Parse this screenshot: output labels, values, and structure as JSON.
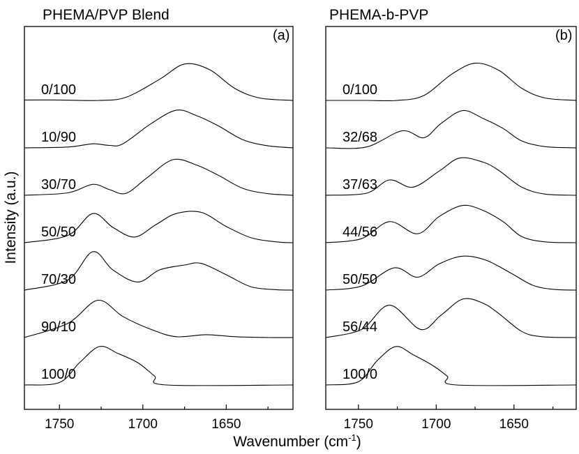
{
  "figure": {
    "xlabel": "Wavenumber (cm",
    "xlabel_sup": "-1",
    "xlabel_close": ")",
    "ylabel": "Intensity (a.u.)"
  },
  "chart_data": [
    {
      "type": "line",
      "title": "PHEMA/PVP Blend",
      "panel_label": "(a)",
      "xlabel": "Wavenumber (cm-1)",
      "ylabel": "Intensity (a.u.)",
      "xlim": [
        1771,
        1610
      ],
      "x_reversed": true,
      "xticks": [
        1750,
        1700,
        1650
      ],
      "yaxis_ticks": false,
      "traces_offset_stacked": true,
      "series": [
        {
          "name": "0/100",
          "points": [
            [
              1771,
              0.01
            ],
            [
              1750,
              0.01
            ],
            [
              1726,
              0.0
            ],
            [
              1710,
              0.08
            ],
            [
              1690,
              0.52
            ],
            [
              1675,
              0.9
            ],
            [
              1660,
              0.76
            ],
            [
              1645,
              0.3
            ],
            [
              1630,
              0.06
            ],
            [
              1610,
              0.0
            ]
          ]
        },
        {
          "name": "10/90",
          "points": [
            [
              1771,
              0.0
            ],
            [
              1745,
              0.02
            ],
            [
              1730,
              0.1
            ],
            [
              1720,
              0.06
            ],
            [
              1712,
              0.1
            ],
            [
              1695,
              0.6
            ],
            [
              1680,
              0.93
            ],
            [
              1668,
              0.8
            ],
            [
              1655,
              0.55
            ],
            [
              1640,
              0.2
            ],
            [
              1625,
              0.05
            ],
            [
              1610,
              0.0
            ]
          ]
        },
        {
          "name": "30/70",
          "points": [
            [
              1771,
              0.0
            ],
            [
              1745,
              0.06
            ],
            [
              1730,
              0.27
            ],
            [
              1720,
              0.14
            ],
            [
              1710,
              0.05
            ],
            [
              1697,
              0.45
            ],
            [
              1682,
              0.88
            ],
            [
              1668,
              0.75
            ],
            [
              1655,
              0.5
            ],
            [
              1640,
              0.17
            ],
            [
              1625,
              0.04
            ],
            [
              1610,
              0.0
            ]
          ]
        },
        {
          "name": "50/50",
          "points": [
            [
              1771,
              0.0
            ],
            [
              1745,
              0.18
            ],
            [
              1730,
              0.72
            ],
            [
              1718,
              0.38
            ],
            [
              1705,
              0.14
            ],
            [
              1692,
              0.45
            ],
            [
              1680,
              0.72
            ],
            [
              1665,
              0.75
            ],
            [
              1650,
              0.4
            ],
            [
              1635,
              0.12
            ],
            [
              1620,
              0.02
            ],
            [
              1610,
              0.0
            ]
          ]
        },
        {
          "name": "70/30",
          "points": [
            [
              1771,
              0.0
            ],
            [
              1745,
              0.25
            ],
            [
              1730,
              0.95
            ],
            [
              1718,
              0.5
            ],
            [
              1703,
              0.2
            ],
            [
              1690,
              0.5
            ],
            [
              1675,
              0.62
            ],
            [
              1665,
              0.66
            ],
            [
              1650,
              0.38
            ],
            [
              1635,
              0.08
            ],
            [
              1620,
              0.01
            ],
            [
              1610,
              0.0
            ]
          ]
        },
        {
          "name": "90/10",
          "points": [
            [
              1771,
              0.0
            ],
            [
              1745,
              0.35
            ],
            [
              1727,
              0.92
            ],
            [
              1712,
              0.52
            ],
            [
              1695,
              0.2
            ],
            [
              1680,
              0.02
            ],
            [
              1662,
              0.07
            ],
            [
              1645,
              0.02
            ],
            [
              1625,
              0.0
            ],
            [
              1610,
              0.0
            ]
          ]
        },
        {
          "name": "100/0",
          "points": [
            [
              1771,
              0.0
            ],
            [
              1750,
              0.06
            ],
            [
              1738,
              0.55
            ],
            [
              1726,
              0.95
            ],
            [
              1715,
              0.78
            ],
            [
              1703,
              0.55
            ],
            [
              1693,
              0.22
            ],
            [
              1686,
              0.0
            ],
            [
              1610,
              0.0
            ]
          ]
        }
      ]
    },
    {
      "type": "line",
      "title": "PHEMA-b-PVP",
      "panel_label": "(b)",
      "xlabel": "Wavenumber (cm-1)",
      "ylabel": "Intensity (a.u.)",
      "xlim": [
        1771,
        1610
      ],
      "x_reversed": true,
      "xticks": [
        1750,
        1700,
        1650
      ],
      "yaxis_ticks": false,
      "traces_offset_stacked": true,
      "series": [
        {
          "name": "0/100",
          "points": [
            [
              1771,
              0.0
            ],
            [
              1745,
              0.0
            ],
            [
              1725,
              0.0
            ],
            [
              1708,
              0.12
            ],
            [
              1690,
              0.65
            ],
            [
              1675,
              0.92
            ],
            [
              1660,
              0.75
            ],
            [
              1645,
              0.3
            ],
            [
              1630,
              0.06
            ],
            [
              1610,
              0.0
            ]
          ]
        },
        {
          "name": "32/68",
          "points": [
            [
              1771,
              0.0
            ],
            [
              1745,
              0.02
            ],
            [
              1722,
              0.42
            ],
            [
              1708,
              0.25
            ],
            [
              1697,
              0.6
            ],
            [
              1683,
              0.92
            ],
            [
              1670,
              0.73
            ],
            [
              1657,
              0.48
            ],
            [
              1645,
              0.17
            ],
            [
              1630,
              0.03
            ],
            [
              1610,
              0.0
            ]
          ]
        },
        {
          "name": "37/63",
          "points": [
            [
              1771,
              0.0
            ],
            [
              1745,
              0.05
            ],
            [
              1730,
              0.38
            ],
            [
              1715,
              0.2
            ],
            [
              1698,
              0.6
            ],
            [
              1685,
              0.92
            ],
            [
              1670,
              0.82
            ],
            [
              1660,
              0.62
            ],
            [
              1645,
              0.2
            ],
            [
              1630,
              0.03
            ],
            [
              1610,
              0.0
            ]
          ]
        },
        {
          "name": "44/56",
          "points": [
            [
              1771,
              0.0
            ],
            [
              1748,
              0.1
            ],
            [
              1730,
              0.52
            ],
            [
              1712,
              0.22
            ],
            [
              1698,
              0.65
            ],
            [
              1683,
              0.92
            ],
            [
              1670,
              0.8
            ],
            [
              1657,
              0.52
            ],
            [
              1645,
              0.15
            ],
            [
              1630,
              0.02
            ],
            [
              1610,
              0.0
            ]
          ]
        },
        {
          "name": "50/50",
          "points": [
            [
              1771,
              0.0
            ],
            [
              1748,
              0.1
            ],
            [
              1727,
              0.55
            ],
            [
              1712,
              0.32
            ],
            [
              1698,
              0.65
            ],
            [
              1683,
              0.84
            ],
            [
              1668,
              0.74
            ],
            [
              1652,
              0.42
            ],
            [
              1638,
              0.12
            ],
            [
              1625,
              0.02
            ],
            [
              1610,
              0.0
            ]
          ]
        },
        {
          "name": "56/44",
          "points": [
            [
              1771,
              0.0
            ],
            [
              1748,
              0.2
            ],
            [
              1730,
              0.8
            ],
            [
              1710,
              0.2
            ],
            [
              1697,
              0.55
            ],
            [
              1683,
              0.95
            ],
            [
              1670,
              0.85
            ],
            [
              1660,
              0.6
            ],
            [
              1645,
              0.15
            ],
            [
              1632,
              0.02
            ],
            [
              1610,
              0.0
            ]
          ]
        },
        {
          "name": "100/0",
          "points": [
            [
              1771,
              0.0
            ],
            [
              1750,
              0.08
            ],
            [
              1738,
              0.6
            ],
            [
              1726,
              0.95
            ],
            [
              1715,
              0.75
            ],
            [
              1703,
              0.5
            ],
            [
              1693,
              0.22
            ],
            [
              1687,
              0.0
            ],
            [
              1610,
              0.0
            ]
          ]
        }
      ]
    }
  ]
}
